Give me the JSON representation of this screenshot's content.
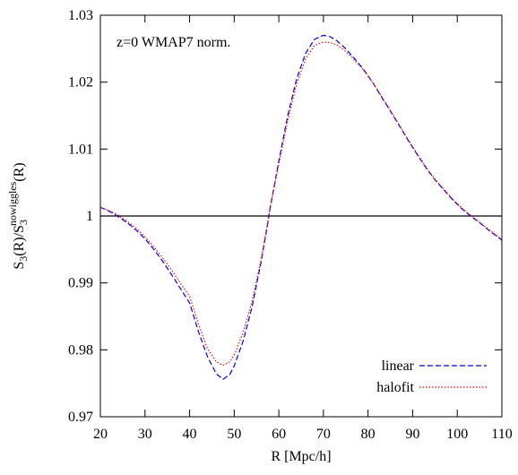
{
  "chart_data": {
    "type": "line",
    "title": "",
    "annotation": "z=0 WMAP7 norm.",
    "xlabel": "R [Mpc/h]",
    "ylabel": {
      "main": "S",
      "sub1": "3",
      "mid": "(R)/S",
      "sub2": "3",
      "sup": "nowiggles",
      "end": "(R)"
    },
    "xlim": [
      20,
      110
    ],
    "ylim": [
      0.97,
      1.03
    ],
    "xticks": [
      20,
      30,
      40,
      50,
      60,
      70,
      80,
      90,
      100,
      110
    ],
    "xtick_labels": [
      "20",
      "30",
      "40",
      "50",
      "60",
      "70",
      "80",
      "90",
      "100",
      "110"
    ],
    "yticks": [
      0.97,
      0.98,
      0.99,
      1.0,
      1.01,
      1.02,
      1.03
    ],
    "ytick_labels": [
      "0.97",
      "0.98",
      "0.99",
      "1",
      "1.01",
      "1.02",
      "1.03"
    ],
    "grid": false,
    "legend_position": "bottom-right",
    "reference_line": {
      "y": 1.0,
      "color": "#000000"
    },
    "series": [
      {
        "name": "linear",
        "color": "#0000ff",
        "dash": "dashed",
        "x": [
          20,
          22,
          24,
          26,
          28,
          30,
          32,
          34,
          36,
          38,
          40,
          42,
          44,
          46,
          47.5,
          49,
          50,
          52,
          54,
          56,
          57.5,
          58,
          60,
          62,
          64,
          66,
          68,
          70,
          71.5,
          73,
          75,
          77,
          79,
          81,
          83,
          85,
          87,
          89,
          91,
          93,
          95,
          97,
          99,
          101,
          103,
          105,
          107,
          109,
          110
        ],
        "y": [
          1.0013,
          1.0007,
          0.9999,
          0.999,
          0.9979,
          0.9966,
          0.995,
          0.9932,
          0.9912,
          0.9891,
          0.987,
          0.9827,
          0.979,
          0.9764,
          0.9756,
          0.9763,
          0.9776,
          0.9813,
          0.9864,
          0.993,
          0.9988,
          1.001,
          1.0082,
          1.015,
          1.0205,
          1.0243,
          1.0264,
          1.027,
          1.0268,
          1.0262,
          1.025,
          1.0235,
          1.0219,
          1.02,
          1.0178,
          1.0157,
          1.0135,
          1.0113,
          1.0092,
          1.0072,
          1.0054,
          1.0039,
          1.0024,
          1.0011,
          1.0,
          0.999,
          0.9979,
          0.9969,
          0.9964
        ]
      },
      {
        "name": "halofit",
        "color": "#ff0000",
        "dash": "dotted",
        "x": [
          20,
          22,
          24,
          26,
          28,
          30,
          32,
          34,
          36,
          38,
          40,
          42,
          44,
          46,
          47.5,
          49,
          50,
          52,
          54,
          56,
          57.5,
          58,
          60,
          62,
          64,
          66,
          68,
          70,
          71.5,
          73,
          75,
          77,
          79,
          81,
          83,
          85,
          87,
          89,
          91,
          93,
          95,
          97,
          99,
          101,
          103,
          105,
          107,
          109,
          110
        ],
        "y": [
          1.0013,
          1.0008,
          1.0001,
          0.9992,
          0.9982,
          0.9969,
          0.9954,
          0.9937,
          0.9919,
          0.9899,
          0.988,
          0.9838,
          0.9802,
          0.9782,
          0.9777,
          0.9782,
          0.9792,
          0.9826,
          0.9872,
          0.9934,
          0.999,
          1.001,
          1.0078,
          1.0143,
          1.0197,
          1.0235,
          1.0255,
          1.026,
          1.0259,
          1.0256,
          1.0246,
          1.0233,
          1.0218,
          1.02,
          1.0179,
          1.0158,
          1.0136,
          1.0114,
          1.0093,
          1.0073,
          1.0055,
          1.004,
          1.0025,
          1.0012,
          1.0001,
          0.9991,
          0.998,
          0.997,
          0.9965
        ]
      }
    ]
  }
}
